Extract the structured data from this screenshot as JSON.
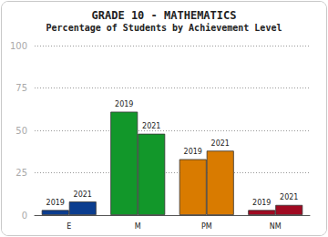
{
  "chart_data": {
    "type": "bar",
    "title": "GRADE 10 - MATHEMATICS",
    "subtitle": "Percentage of Students by Achievement Level",
    "categories": [
      "E",
      "M",
      "PM",
      "NM"
    ],
    "series": [
      {
        "name": "2019",
        "values": [
          3,
          61,
          33,
          3
        ]
      },
      {
        "name": "2021",
        "values": [
          8,
          48,
          38,
          6
        ]
      }
    ],
    "colors": [
      "#0b3d8f",
      "#12972a",
      "#d97b00",
      "#a00a22"
    ],
    "ylim": [
      0,
      100
    ],
    "yticks": [
      0,
      25,
      50,
      75,
      100
    ],
    "grid": true
  }
}
